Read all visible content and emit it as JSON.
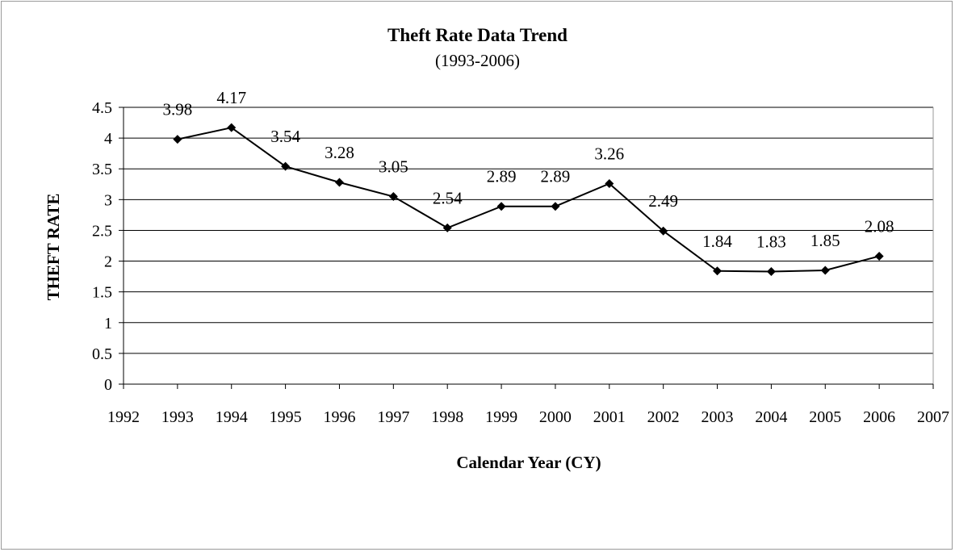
{
  "chart_data": {
    "type": "line",
    "title": "Theft Rate Data Trend",
    "subtitle": "(1993-2006)",
    "xlabel": "Calendar Year (CY)",
    "ylabel": "THEFT RATE",
    "xlim": [
      1992,
      2007
    ],
    "ylim": [
      0,
      4.5
    ],
    "x_ticks": [
      1992,
      1993,
      1994,
      1995,
      1996,
      1997,
      1998,
      1999,
      2000,
      2001,
      2002,
      2003,
      2004,
      2005,
      2006,
      2007
    ],
    "y_ticks": [
      0,
      0.5,
      1,
      1.5,
      2,
      2.5,
      3,
      3.5,
      4,
      4.5
    ],
    "grid": true,
    "legend": "none",
    "series": [
      {
        "x": [
          1993,
          1994,
          1995,
          1996,
          1997,
          1998,
          1999,
          2000,
          2001,
          2002,
          2003,
          2004,
          2005,
          2006
        ],
        "values": [
          3.98,
          4.17,
          3.54,
          3.28,
          3.05,
          2.54,
          2.89,
          2.89,
          3.26,
          2.49,
          1.84,
          1.83,
          1.85,
          2.08
        ],
        "labels": [
          "3.98",
          "4.17",
          "3.54",
          "3.28",
          "3.05",
          "2.54",
          "2.89",
          "2.89",
          "3.26",
          "2.49",
          "1.84",
          "1.83",
          "1.85",
          "2.08"
        ],
        "color": "#000000",
        "marker": "diamond"
      }
    ]
  }
}
